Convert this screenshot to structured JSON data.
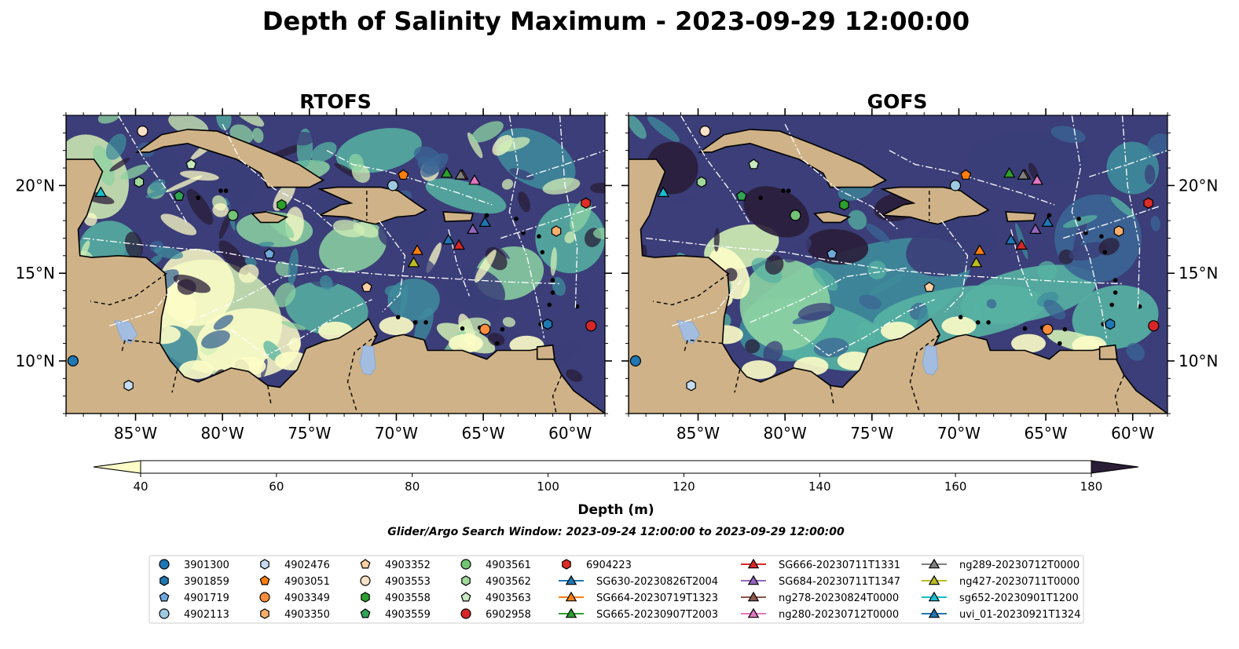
{
  "figure": {
    "suptitle": "Depth of Salinity Maximum - 2023-09-29 12:00:00",
    "search_window": "Glider/Argo Search Window: 2023-09-24 12:00:00 to 2023-09-29 12:00:00"
  },
  "colors": {
    "land": "#cfb287",
    "water_bodies": "#a3bde1",
    "levels": [
      "#fdfdc7",
      "#d2efb5",
      "#8dd3a2",
      "#57b3a2",
      "#3f8c9c",
      "#3b6594",
      "#3b3e78",
      "#2a1d38"
    ]
  },
  "chart_data": [
    {
      "type": "heatmap",
      "title": "RTOFS",
      "xlabel": "",
      "ylabel": "",
      "xlim": [
        -89,
        -58
      ],
      "ylim": [
        7,
        24
      ],
      "xticks": [
        "85°W",
        "80°W",
        "75°W",
        "70°W",
        "65°W",
        "60°W"
      ],
      "yticks": [
        "10°N",
        "15°N",
        "20°N"
      ]
    },
    {
      "type": "heatmap",
      "title": "GOFS",
      "xlabel": "",
      "ylabel": "",
      "xlim": [
        -89,
        -58
      ],
      "ylim": [
        7,
        24
      ],
      "xticks": [
        "85°W",
        "80°W",
        "75°W",
        "70°W",
        "65°W",
        "60°W"
      ],
      "yticks": [
        "10°N",
        "15°N",
        "20°N"
      ]
    }
  ],
  "colorbar": {
    "label": "Depth (m)",
    "ticks": [
      "40",
      "60",
      "80",
      "100",
      "120",
      "140",
      "160",
      "180"
    ],
    "levels": [
      40,
      60,
      80,
      100,
      120,
      140,
      160,
      180
    ],
    "extend": "both"
  },
  "platforms": [
    {
      "name": "3901300",
      "marker": "circle",
      "color": "#1f77b4",
      "lon": -88.6,
      "lat": 10.0
    },
    {
      "name": "3901859",
      "marker": "hexagon",
      "color": "#1f77b4",
      "lon": -61.3,
      "lat": 12.1
    },
    {
      "name": "4901719",
      "marker": "pentagon",
      "color": "#6fa8dc",
      "lon": -77.3,
      "lat": 16.1
    },
    {
      "name": "4902113",
      "marker": "circle",
      "color": "#9ecae1",
      "lon": -70.2,
      "lat": 20.0
    },
    {
      "name": "4902476",
      "marker": "hexagon",
      "color": "#c6dbef",
      "lon": -85.4,
      "lat": 8.6
    },
    {
      "name": "4903051",
      "marker": "pentagon",
      "color": "#ff7f0e",
      "lon": -69.6,
      "lat": 20.6
    },
    {
      "name": "4903349",
      "marker": "circle",
      "color": "#fd8d3c",
      "lon": -64.9,
      "lat": 11.8
    },
    {
      "name": "4903350",
      "marker": "hexagon",
      "color": "#fdae6b",
      "lon": -60.8,
      "lat": 17.4
    },
    {
      "name": "4903352",
      "marker": "pentagon",
      "color": "#fdd0a2",
      "lon": -71.7,
      "lat": 14.2
    },
    {
      "name": "4903553",
      "marker": "circle",
      "color": "#fde0c8",
      "lon": -84.6,
      "lat": 23.1
    },
    {
      "name": "4903558",
      "marker": "hexagon",
      "color": "#2ca02c",
      "lon": -76.6,
      "lat": 18.9
    },
    {
      "name": "4903559",
      "marker": "pentagon",
      "color": "#31a354",
      "lon": -82.5,
      "lat": 19.4
    },
    {
      "name": "4903561",
      "marker": "circle",
      "color": "#74c476",
      "lon": -79.4,
      "lat": 18.3
    },
    {
      "name": "4903562",
      "marker": "hexagon",
      "color": "#a1d99b",
      "lon": -84.8,
      "lat": 20.2
    },
    {
      "name": "4903563",
      "marker": "pentagon",
      "color": "#c7e9c0",
      "lon": -81.8,
      "lat": 21.2
    },
    {
      "name": "6902958",
      "marker": "circle",
      "color": "#d62728",
      "lon": -58.8,
      "lat": 12.0
    },
    {
      "name": "6904223",
      "marker": "hexagon",
      "color": "#de2d26",
      "lon": -59.1,
      "lat": 19.0
    },
    {
      "name": "SG630-20230826T2004",
      "marker": "triangle",
      "color": "#1f77b4",
      "lon": -67.0,
      "lat": 16.9
    },
    {
      "name": "SG664-20230719T1323",
      "marker": "triangle",
      "color": "#ff7f0e",
      "lon": -68.8,
      "lat": 16.3
    },
    {
      "name": "SG665-20230907T2003",
      "marker": "triangle",
      "color": "#2ca02c",
      "lon": -67.1,
      "lat": 20.7
    },
    {
      "name": "SG666-20230711T1331",
      "marker": "triangle",
      "color": "#d62728",
      "lon": -66.4,
      "lat": 16.6
    },
    {
      "name": "SG684-20230711T1347",
      "marker": "triangle",
      "color": "#9467bd",
      "lon": -65.6,
      "lat": 17.5
    },
    {
      "name": "ng278-20230824T0000",
      "marker": "triangle",
      "color": "#8c564b",
      "lon": -66.2,
      "lat": 20.6
    },
    {
      "name": "ng280-20230712T0000",
      "marker": "triangle",
      "color": "#e377c2",
      "lon": -65.5,
      "lat": 20.3
    },
    {
      "name": "ng289-20230712T0000",
      "marker": "triangle",
      "color": "#7f7f7f",
      "lon": -66.3,
      "lat": 20.6
    },
    {
      "name": "ng427-20230711T0000",
      "marker": "triangle",
      "color": "#bcbd22",
      "lon": -69.0,
      "lat": 15.6
    },
    {
      "name": "sg652-20230901T1200",
      "marker": "triangle",
      "color": "#17becf",
      "lon": -87.0,
      "lat": 19.6
    },
    {
      "name": "uvi_01-20230921T1324",
      "marker": "triangle",
      "color": "#1f77b4",
      "lon": -64.9,
      "lat": 17.9
    }
  ]
}
